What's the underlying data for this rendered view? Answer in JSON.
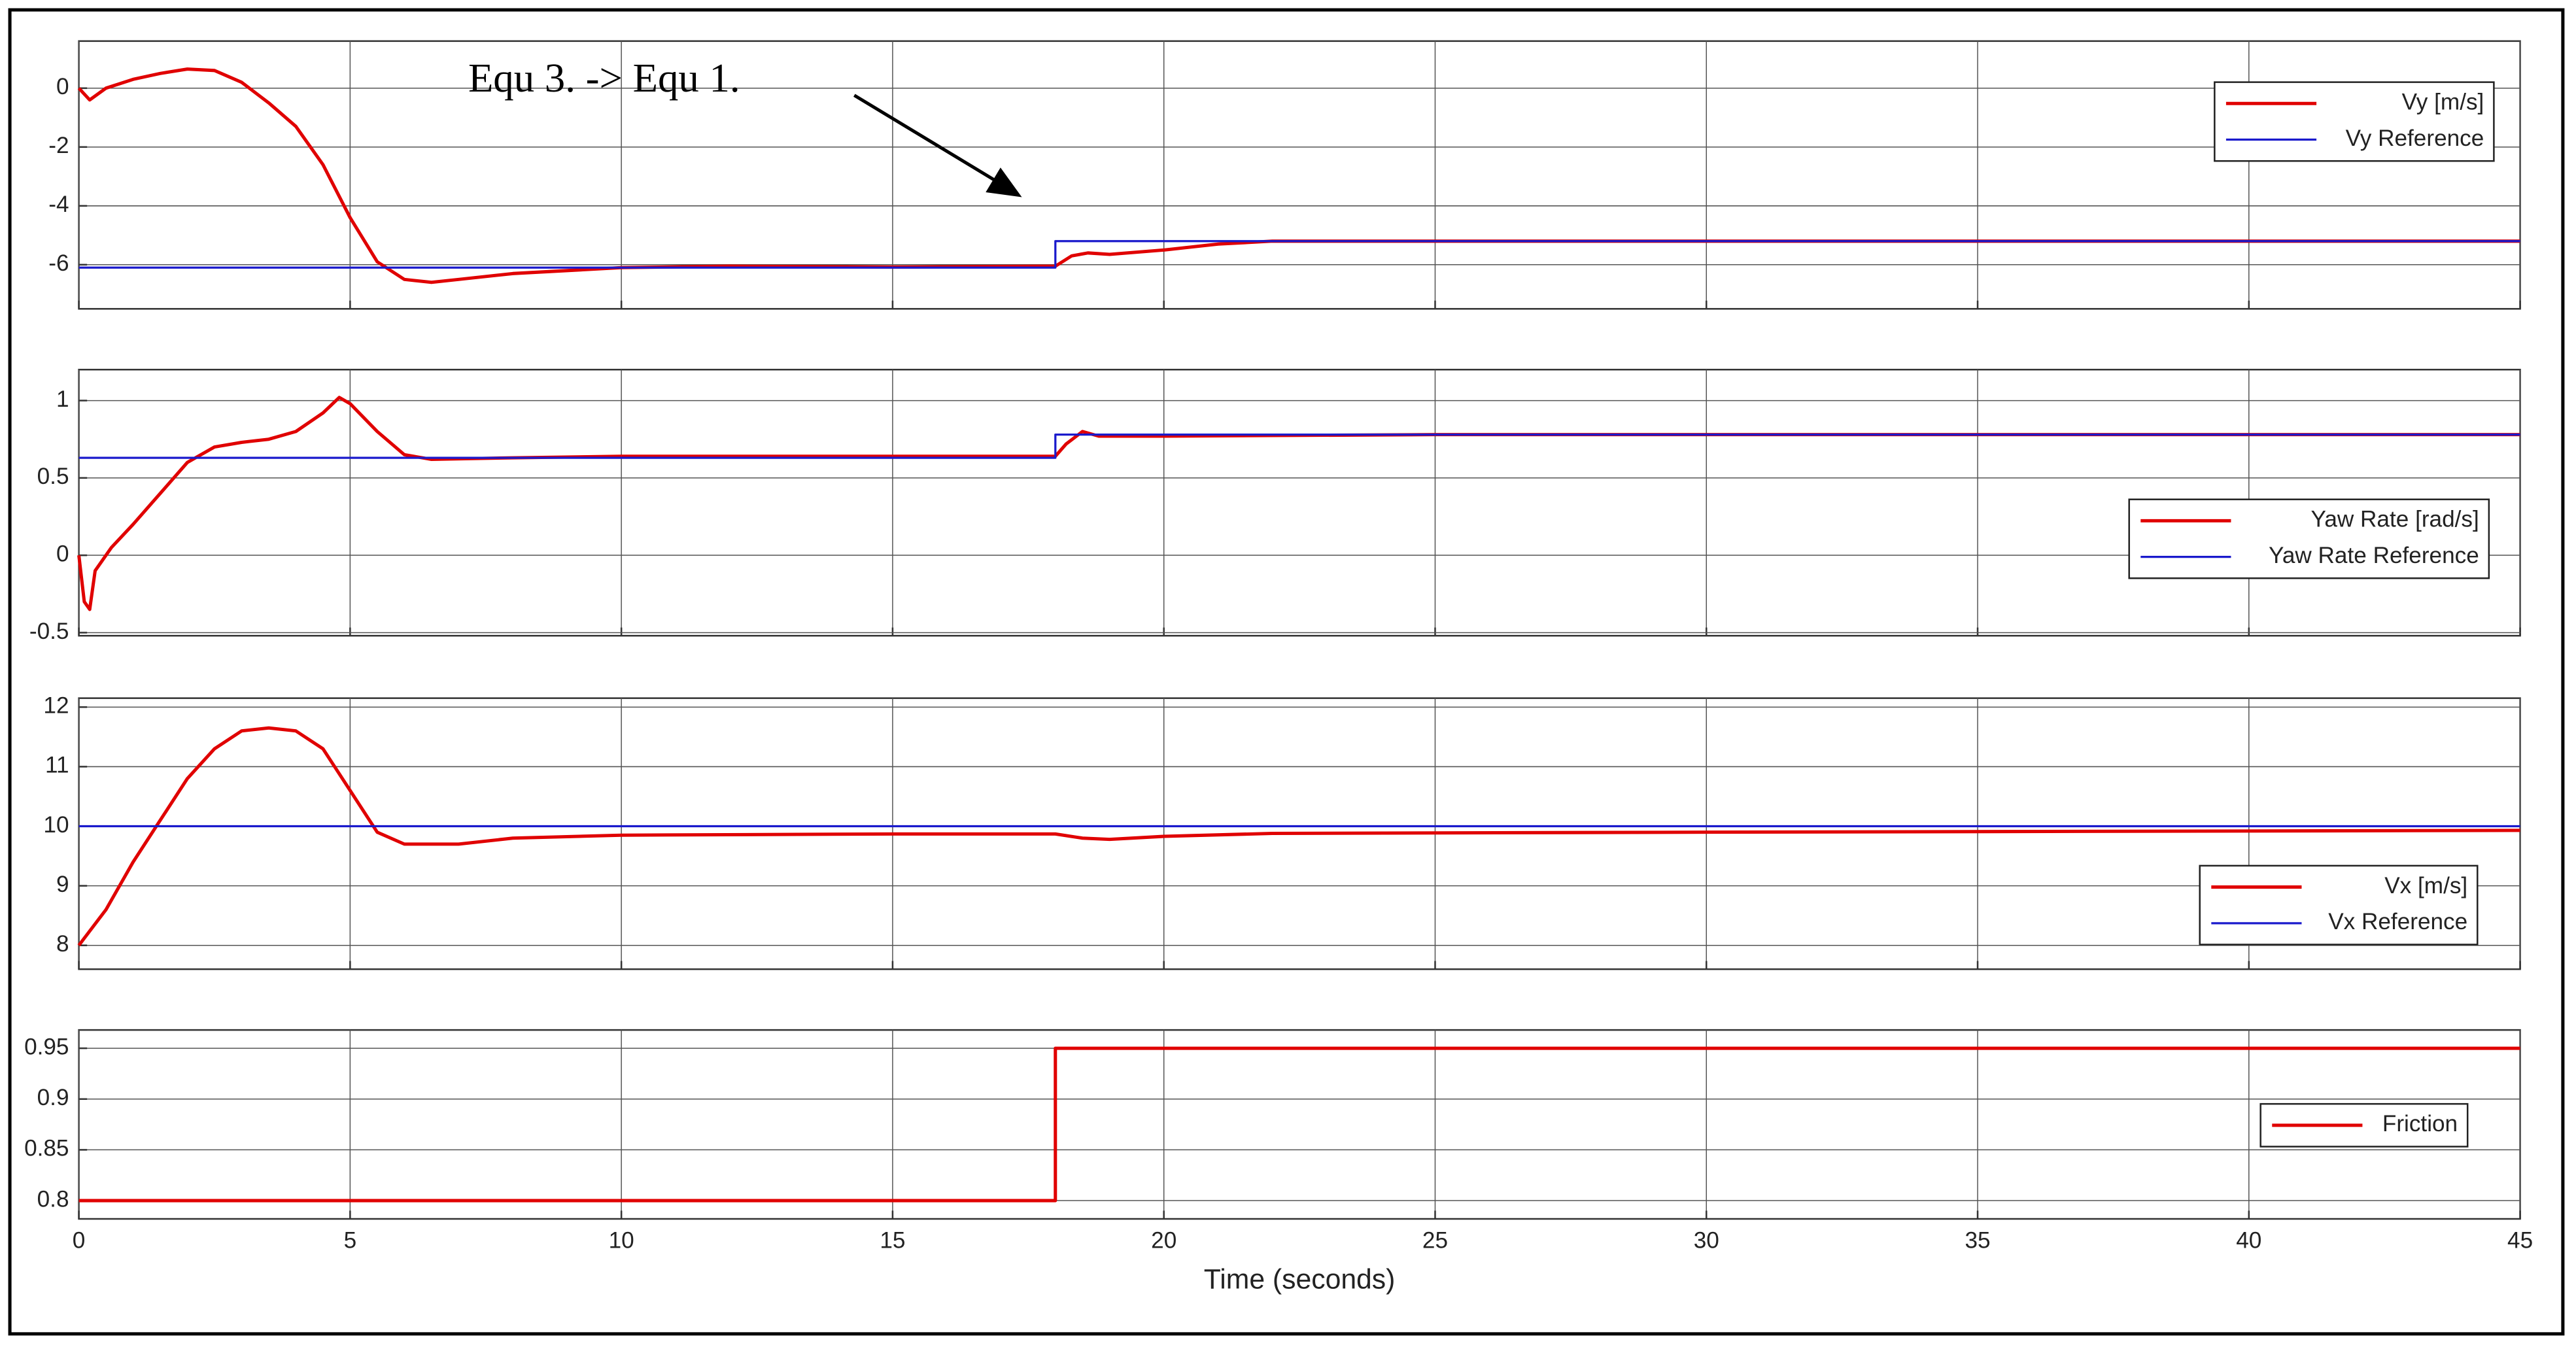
{
  "chart_data": [
    {
      "type": "line",
      "annotation": "Equ 3. -> Equ 1.",
      "xlim": [
        0,
        45
      ],
      "xticks": [
        0,
        5,
        10,
        15,
        20,
        25,
        30,
        35,
        40,
        45
      ],
      "show_xtick_labels": false,
      "ylim": [
        -7.5,
        1.6
      ],
      "yticks": [
        -6,
        -4,
        -2,
        0
      ],
      "grid": true,
      "legend": "upper right",
      "series": [
        {
          "name": "Vy [m/s]",
          "color": "#e00000",
          "x": [
            0,
            0.2,
            0.5,
            1,
            1.5,
            2,
            2.5,
            3,
            3.5,
            4,
            4.5,
            5,
            5.5,
            6,
            6.5,
            7,
            8,
            10,
            12,
            15,
            18,
            18.3,
            18.6,
            19,
            20,
            21,
            22,
            25,
            30,
            45
          ],
          "values": [
            0,
            -0.4,
            0,
            0.3,
            0.5,
            0.65,
            0.6,
            0.2,
            -0.5,
            -1.3,
            -2.6,
            -4.4,
            -5.9,
            -6.5,
            -6.6,
            -6.5,
            -6.3,
            -6.1,
            -6.05,
            -6.08,
            -6.05,
            -5.7,
            -5.6,
            -5.65,
            -5.5,
            -5.3,
            -5.2,
            -5.2,
            -5.2,
            -5.2
          ]
        },
        {
          "name": "Vy Reference",
          "color": "#1a1acc",
          "x": [
            0,
            18,
            18,
            45
          ],
          "values": [
            -6.1,
            -6.1,
            -5.2,
            -5.2
          ]
        }
      ]
    },
    {
      "type": "line",
      "xlim": [
        0,
        45
      ],
      "xticks": [
        0,
        5,
        10,
        15,
        20,
        25,
        30,
        35,
        40,
        45
      ],
      "show_xtick_labels": false,
      "ylim": [
        -0.52,
        1.2
      ],
      "yticks": [
        -0.5,
        0,
        0.5,
        1
      ],
      "grid": true,
      "legend": "lower right",
      "series": [
        {
          "name": "Yaw Rate [rad/s]",
          "color": "#e00000",
          "x": [
            0,
            0.1,
            0.2,
            0.3,
            0.6,
            1,
            1.5,
            2,
            2.5,
            3,
            3.5,
            4,
            4.5,
            4.8,
            5,
            5.5,
            6,
            6.5,
            8,
            10,
            15,
            18,
            18.2,
            18.5,
            18.8,
            20,
            25,
            45
          ],
          "values": [
            0,
            -0.3,
            -0.35,
            -0.1,
            0.05,
            0.2,
            0.4,
            0.6,
            0.7,
            0.73,
            0.75,
            0.8,
            0.92,
            1.02,
            0.98,
            0.8,
            0.65,
            0.62,
            0.63,
            0.64,
            0.64,
            0.64,
            0.72,
            0.8,
            0.77,
            0.77,
            0.78,
            0.78
          ]
        },
        {
          "name": "Yaw Rate Reference",
          "color": "#1a1acc",
          "x": [
            0,
            18,
            18,
            45
          ],
          "values": [
            0.63,
            0.63,
            0.78,
            0.78
          ]
        }
      ]
    },
    {
      "type": "line",
      "xlim": [
        0,
        45
      ],
      "xticks": [
        0,
        5,
        10,
        15,
        20,
        25,
        30,
        35,
        40,
        45
      ],
      "show_xtick_labels": false,
      "ylim": [
        7.6,
        12.15
      ],
      "yticks": [
        8,
        9,
        10,
        11,
        12
      ],
      "grid": true,
      "legend": "lower right",
      "series": [
        {
          "name": "Vx [m/s]",
          "color": "#e00000",
          "x": [
            0,
            0.5,
            1,
            1.5,
            2,
            2.5,
            3,
            3.5,
            4,
            4.5,
            5,
            5.5,
            6,
            7,
            8,
            10,
            15,
            18,
            18.5,
            19,
            20,
            22,
            30,
            45
          ],
          "values": [
            8,
            8.6,
            9.4,
            10.1,
            10.8,
            11.3,
            11.6,
            11.65,
            11.6,
            11.3,
            10.6,
            9.9,
            9.7,
            9.7,
            9.8,
            9.85,
            9.87,
            9.87,
            9.8,
            9.78,
            9.83,
            9.88,
            9.9,
            9.93
          ]
        },
        {
          "name": "Vx Reference",
          "color": "#1a1acc",
          "x": [
            0,
            45
          ],
          "values": [
            10,
            10
          ]
        }
      ]
    },
    {
      "type": "line",
      "xlabel": "Time (seconds)",
      "xlim": [
        0,
        45
      ],
      "xticks": [
        0,
        5,
        10,
        15,
        20,
        25,
        30,
        35,
        40,
        45
      ],
      "show_xtick_labels": true,
      "ylim": [
        0.782,
        0.968
      ],
      "yticks": [
        0.8,
        0.85,
        0.9,
        0.95
      ],
      "grid": true,
      "legend": "lower right",
      "series": [
        {
          "name": "Friction",
          "color": "#e00000",
          "x": [
            0,
            18,
            18,
            45
          ],
          "values": [
            0.8,
            0.8,
            0.95,
            0.95
          ]
        }
      ]
    }
  ]
}
